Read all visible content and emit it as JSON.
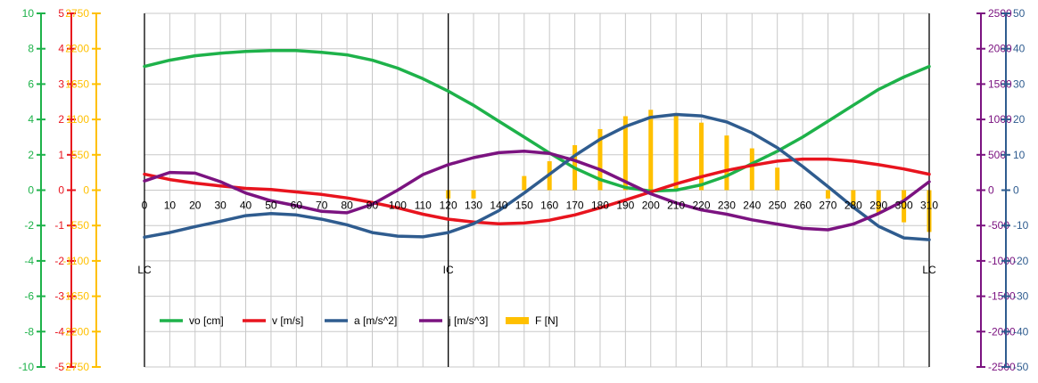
{
  "chart_data": {
    "type": "line",
    "title": "",
    "x": [
      0,
      10,
      20,
      30,
      40,
      50,
      60,
      70,
      80,
      90,
      100,
      110,
      120,
      130,
      140,
      150,
      160,
      170,
      180,
      190,
      200,
      210,
      220,
      230,
      240,
      250,
      260,
      270,
      280,
      290,
      300,
      310
    ],
    "x_tick_labels": [
      "0",
      "10",
      "20",
      "30",
      "40",
      "50",
      "60",
      "70",
      "80",
      "90",
      "100",
      "110",
      "120",
      "130",
      "140",
      "150",
      "160",
      "170",
      "180",
      "190",
      "200",
      "210",
      "220",
      "230",
      "240",
      "250",
      "260",
      "270",
      "280",
      "290",
      "300",
      "310"
    ],
    "xlim": [
      0,
      310
    ],
    "grid": true,
    "legend_position": "bottom-left",
    "markers": [
      {
        "x": 0,
        "label": "LC"
      },
      {
        "x": 120,
        "label": "IC"
      },
      {
        "x": 310,
        "label": "LC"
      }
    ],
    "axes": [
      {
        "id": "vo",
        "side": "left",
        "color": "#1eb24a",
        "ylim": [
          -10,
          10
        ],
        "ticks": [
          "-10",
          "-8",
          "-6",
          "-4",
          "-2",
          "0",
          "2",
          "4",
          "6",
          "8",
          "10"
        ]
      },
      {
        "id": "v",
        "side": "left",
        "color": "#e8141e",
        "ylim": [
          -5,
          5
        ],
        "ticks": [
          "-5",
          "-4",
          "-3",
          "-2",
          "-1",
          "0",
          "1",
          "2",
          "3",
          "4",
          "5"
        ]
      },
      {
        "id": "F",
        "side": "left",
        "color": "#ffc000",
        "ylim": [
          -2750,
          2750
        ],
        "ticks": [
          "-2750",
          "-2200",
          "-1650",
          "-1100",
          "-550",
          "0",
          "550",
          "1100",
          "1650",
          "2200",
          "2750"
        ]
      },
      {
        "id": "j",
        "side": "right",
        "color": "#7b1380",
        "ylim": [
          -2500,
          2500
        ],
        "ticks": [
          "-2500",
          "-2000",
          "-1500",
          "-1000",
          "-500",
          "0",
          "500",
          "1000",
          "1500",
          "2000",
          "2500"
        ]
      },
      {
        "id": "a",
        "side": "right",
        "color": "#2f5c8f",
        "ylim": [
          -50,
          50
        ],
        "ticks": [
          "-50",
          "-40",
          "-30",
          "-20",
          "-10",
          "0",
          "10",
          "20",
          "30",
          "40",
          "50"
        ]
      }
    ],
    "series": [
      {
        "name": "vo [cm]",
        "type": "line",
        "axis": "vo",
        "color": "#1eb24a",
        "values": [
          7.0,
          7.35,
          7.6,
          7.75,
          7.85,
          7.9,
          7.9,
          7.8,
          7.65,
          7.35,
          6.9,
          6.3,
          5.6,
          4.8,
          3.9,
          3.0,
          2.1,
          1.25,
          0.6,
          0.15,
          -0.05,
          0.0,
          0.3,
          0.8,
          1.5,
          2.2,
          3.0,
          3.9,
          4.8,
          5.7,
          6.4,
          7.0
        ]
      },
      {
        "name": "v [m/s]",
        "type": "line",
        "axis": "v",
        "color": "#e8141e",
        "values": [
          0.45,
          0.3,
          0.2,
          0.12,
          0.05,
          0.02,
          -0.05,
          -0.12,
          -0.22,
          -0.35,
          -0.5,
          -0.68,
          -0.82,
          -0.9,
          -0.95,
          -0.93,
          -0.85,
          -0.7,
          -0.5,
          -0.28,
          -0.05,
          0.18,
          0.38,
          0.56,
          0.7,
          0.82,
          0.88,
          0.88,
          0.82,
          0.72,
          0.6,
          0.45
        ]
      },
      {
        "name": "a [m/s^2]",
        "type": "line",
        "axis": "a",
        "color": "#2f5c8f",
        "values": [
          -13.3,
          -12.0,
          -10.3,
          -8.8,
          -7.2,
          -6.6,
          -7.0,
          -8.2,
          -9.8,
          -12.0,
          -13.0,
          -13.2,
          -12.0,
          -9.5,
          -5.8,
          -0.8,
          4.5,
          9.8,
          14.4,
          18.0,
          20.6,
          21.4,
          21.0,
          19.3,
          16.2,
          12.0,
          6.7,
          1.0,
          -4.8,
          -10.2,
          -13.5,
          -14.0
        ]
      },
      {
        "name": "j [m/s^3]",
        "type": "line",
        "axis": "j",
        "color": "#7b1380",
        "values": [
          130,
          250,
          240,
          120,
          -40,
          -150,
          -220,
          -300,
          -320,
          -200,
          0,
          220,
          360,
          460,
          530,
          550,
          520,
          420,
          290,
          120,
          -50,
          -180,
          -280,
          -340,
          -420,
          -480,
          -540,
          -560,
          -480,
          -330,
          -150,
          120
        ]
      },
      {
        "name": "F [N]",
        "type": "bar",
        "axis": "F",
        "color": "#ffc000",
        "values": [
          0,
          0,
          0,
          0,
          0,
          0,
          0,
          0,
          0,
          0,
          0,
          0,
          -130,
          -130,
          0,
          220,
          450,
          700,
          950,
          1150,
          1250,
          1200,
          1050,
          850,
          650,
          350,
          0,
          -130,
          -250,
          -350,
          -500,
          -650
        ]
      }
    ]
  }
}
